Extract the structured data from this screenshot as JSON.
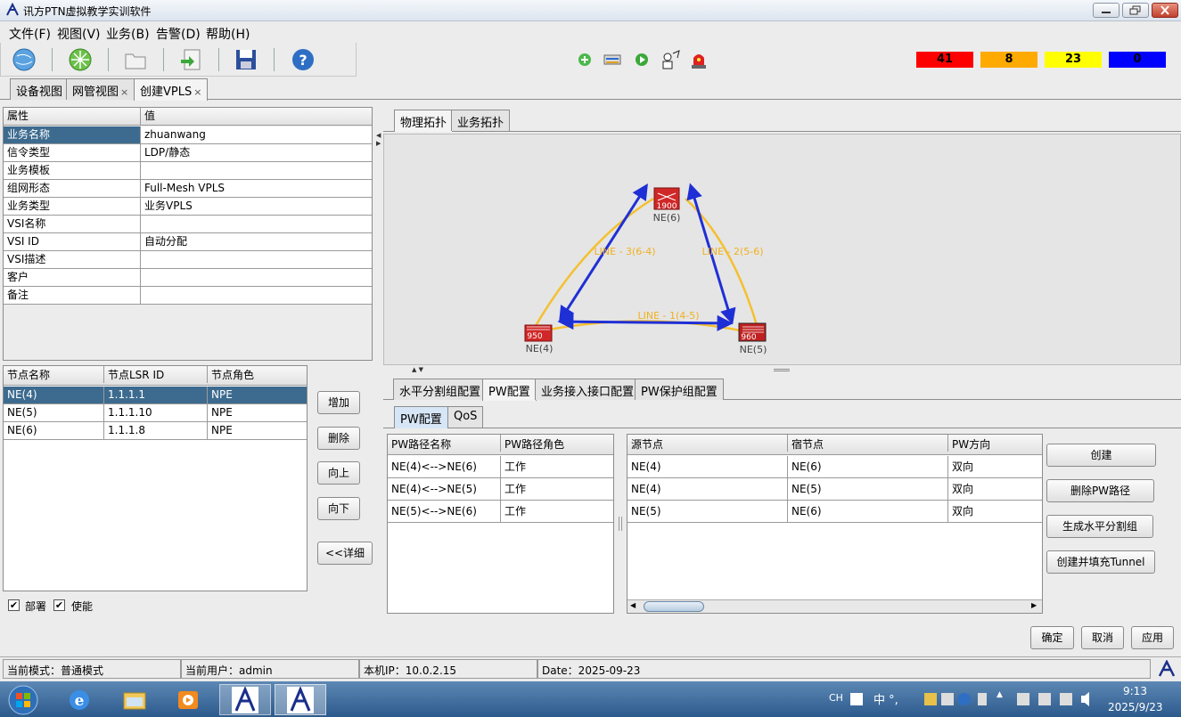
{
  "window": {
    "title": "讯方PTN虚拟教学实训软件"
  },
  "menu": [
    "文件(F)",
    "视图(V)",
    "业务(B)",
    "告警(D)",
    "帮助(H)"
  ],
  "alarms": [
    {
      "value": "41",
      "color": "#ff0000"
    },
    {
      "value": "8",
      "color": "#ffaa00"
    },
    {
      "value": "23",
      "color": "#ffff00"
    },
    {
      "value": "0",
      "color": "#0000ff"
    }
  ],
  "main_tabs": [
    {
      "label": "设备视图",
      "closable": false
    },
    {
      "label": "网管视图",
      "closable": true
    },
    {
      "label": "创建VPLS",
      "closable": true
    }
  ],
  "props": {
    "headers": [
      "属性",
      "值"
    ],
    "rows": [
      {
        "k": "业务名称",
        "v": "zhuanwang"
      },
      {
        "k": "信令类型",
        "v": "LDP/静态"
      },
      {
        "k": "业务模板",
        "v": ""
      },
      {
        "k": "组网形态",
        "v": "Full-Mesh VPLS"
      },
      {
        "k": "业务类型",
        "v": "业务VPLS"
      },
      {
        "k": "VSI名称",
        "v": ""
      },
      {
        "k": "VSI ID",
        "v": "自动分配"
      },
      {
        "k": "VSI描述",
        "v": ""
      },
      {
        "k": "客户",
        "v": ""
      },
      {
        "k": "备注",
        "v": ""
      }
    ]
  },
  "nodes": {
    "headers": [
      "节点名称",
      "节点LSR ID",
      "节点角色"
    ],
    "rows": [
      {
        "name": "NE(4)",
        "lsr": "1.1.1.1",
        "role": "NPE"
      },
      {
        "name": "NE(5)",
        "lsr": "1.1.1.10",
        "role": "NPE"
      },
      {
        "name": "NE(6)",
        "lsr": "1.1.1.8",
        "role": "NPE"
      }
    ]
  },
  "node_buttons": [
    "增加",
    "删除",
    "向上",
    "向下",
    "<<详细"
  ],
  "checkboxes": [
    {
      "label": "部署",
      "checked": true
    },
    {
      "label": "使能",
      "checked": true
    }
  ],
  "topo_tabs": [
    "物理拓扑",
    "业务拓扑"
  ],
  "topology": {
    "ne": [
      {
        "label": "NE(6)",
        "model": "1900"
      },
      {
        "label": "NE(4)",
        "model": "950"
      },
      {
        "label": "NE(5)",
        "model": "960"
      }
    ],
    "lines": [
      "LINE - 1(4-5)",
      "LINE - 2(5-6)",
      "LINE - 3(6-4)"
    ]
  },
  "config_tabs": [
    "水平分割组配置",
    "PW配置",
    "业务接入接口配置",
    "PW保护组配置"
  ],
  "sub_tabs": [
    "PW配置",
    "QoS"
  ],
  "pw_paths": {
    "headers": [
      "PW路径名称",
      "PW路径角色"
    ],
    "rows": [
      {
        "name": "NE(4)<-->NE(6)",
        "role": "工作"
      },
      {
        "name": "NE(4)<-->NE(5)",
        "role": "工作"
      },
      {
        "name": "NE(5)<-->NE(6)",
        "role": "工作"
      }
    ]
  },
  "pw_detail": {
    "headers": [
      "源节点",
      "宿节点",
      "PW方向"
    ],
    "rows": [
      {
        "src": "NE(4)",
        "dst": "NE(6)",
        "dir": "双向"
      },
      {
        "src": "NE(4)",
        "dst": "NE(5)",
        "dir": "双向"
      },
      {
        "src": "NE(5)",
        "dst": "NE(6)",
        "dir": "双向"
      }
    ]
  },
  "pw_buttons": [
    "创建",
    "删除PW路径",
    "生成水平分割组",
    "创建并填充Tunnel"
  ],
  "dialog_buttons": [
    "确定",
    "取消",
    "应用"
  ],
  "status": {
    "mode": "当前模式：普通模式",
    "user": "当前用户：admin",
    "ip": "本机IP：10.0.2.15",
    "date": "Date：2025-09-23"
  },
  "taskbar": {
    "lang": "CH",
    "time": "9:13",
    "date": "2025/9/23"
  }
}
